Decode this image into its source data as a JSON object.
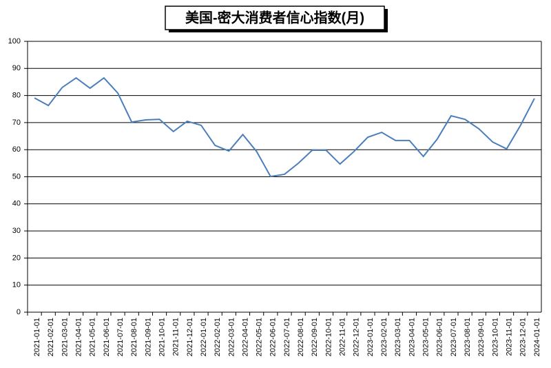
{
  "chart_data": {
    "type": "line",
    "title": "美国-密大消费者信心指数(月)",
    "categories": [
      "2021-01-01",
      "2021-02-01",
      "2021-03-01",
      "2021-04-01",
      "2021-05-01",
      "2021-06-01",
      "2021-07-01",
      "2021-08-01",
      "2021-09-01",
      "2021-10-01",
      "2021-11-01",
      "2021-12-01",
      "2022-01-01",
      "2022-02-01",
      "2022-03-01",
      "2022-04-01",
      "2022-05-01",
      "2022-06-01",
      "2022-07-01",
      "2022-08-01",
      "2022-09-01",
      "2022-10-01",
      "2022-11-01",
      "2022-12-01",
      "2023-01-01",
      "2023-02-01",
      "2023-03-01",
      "2023-04-01",
      "2023-05-01",
      "2023-06-01",
      "2023-07-01",
      "2023-08-01",
      "2023-09-01",
      "2023-10-01",
      "2023-11-01",
      "2023-12-01",
      "2024-01-01"
    ],
    "series": [
      {
        "name": "美国-密大消费者信心指数",
        "color": "#4a7ebb",
        "values": [
          79.1,
          76.3,
          83,
          86.5,
          82.7,
          86.5,
          80.9,
          70.2,
          71,
          71.2,
          66.7,
          70.5,
          69,
          61.6,
          59.5,
          65.6,
          59.3,
          50.1,
          50.9,
          55,
          59.8,
          59.8,
          54.7,
          59.3,
          64.6,
          66.4,
          63.4,
          63.4,
          57.5,
          63.9,
          72.5,
          71.2,
          67.7,
          62.8,
          60.3,
          69,
          78.9
        ]
      }
    ],
    "ylim": [
      0,
      100
    ],
    "yticks": [
      0,
      10,
      20,
      30,
      40,
      50,
      60,
      70,
      80,
      90,
      100
    ],
    "grid": true
  }
}
